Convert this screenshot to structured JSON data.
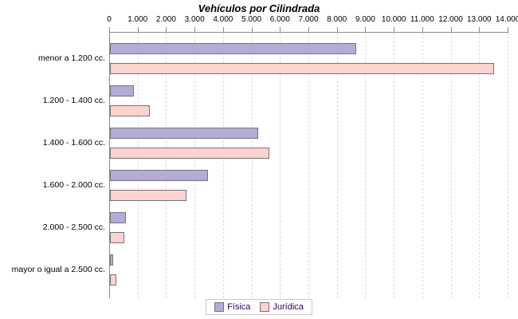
{
  "chart_data": {
    "type": "bar",
    "orientation": "horizontal",
    "title": "Vehículos por Cilindrada",
    "categories": [
      "menor a 1.200 cc.",
      "1.200 - 1.400 cc.",
      "1.400 - 1.600 cc.",
      "1.600 - 2.000 cc.",
      "2.000 - 2.500 cc.",
      "mayor o igual a 2.500 cc."
    ],
    "series": [
      {
        "name": "Física",
        "color": "#b5abd9",
        "values": [
          8650,
          850,
          5200,
          3450,
          570,
          110
        ]
      },
      {
        "name": "Jurídica",
        "color": "#fdd2cf",
        "values": [
          13500,
          1400,
          5600,
          2700,
          500,
          230
        ]
      }
    ],
    "x_axis": {
      "min": 0,
      "max": 14000,
      "tick_interval": 1000,
      "tick_labels": [
        "0",
        "1.000",
        "2.000",
        "3.000",
        "4.000",
        "5.000",
        "6.000",
        "7.000",
        "8.000",
        "9.000",
        "10.000",
        "11.000",
        "12.000",
        "13.000",
        "14.000"
      ]
    },
    "legend": {
      "position": "bottom",
      "entries": [
        "Física",
        "Jurídica"
      ]
    },
    "grid": "vertical-dashed",
    "style": {
      "bar_border_color": "#757575",
      "gridline_color": "#dcdcdc",
      "axis_color": "#8a8a8a",
      "legend_text_color": "#330066",
      "legend_border_color": "#c8c8c8",
      "background": "#ffffff"
    }
  }
}
